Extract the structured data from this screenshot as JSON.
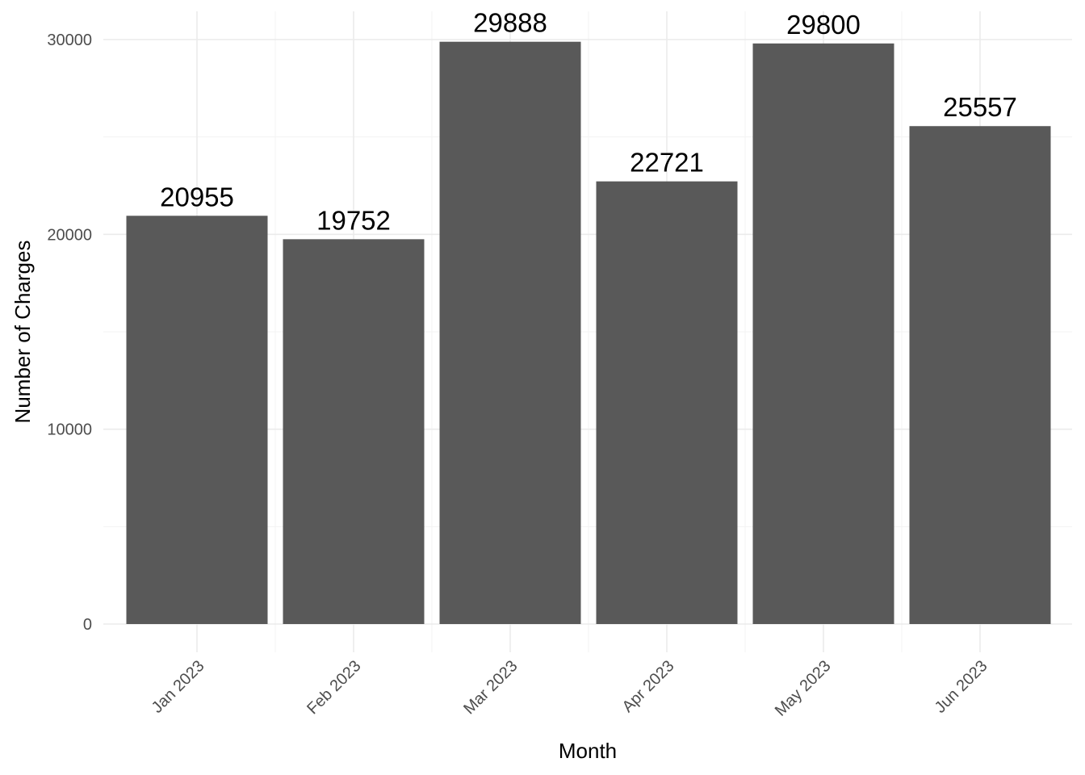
{
  "chart_data": {
    "type": "bar",
    "title": "",
    "xlabel": "Month",
    "ylabel": "Number of Charges",
    "categories": [
      "Jan 2023",
      "Feb 2023",
      "Mar 2023",
      "Apr 2023",
      "May 2023",
      "Jun 2023"
    ],
    "values": [
      20955,
      19752,
      29888,
      22721,
      29800,
      25557
    ],
    "data_labels": [
      "20955",
      "19752",
      "29888",
      "22721",
      "29800",
      "25557"
    ],
    "ylim": [
      0,
      30000
    ],
    "yticks": [
      0,
      10000,
      20000,
      30000
    ],
    "ytick_labels": [
      "0",
      "10000",
      "20000",
      "30000"
    ],
    "grid": true,
    "legend": "none",
    "bar_color": "#595959",
    "background": "#ffffff"
  }
}
